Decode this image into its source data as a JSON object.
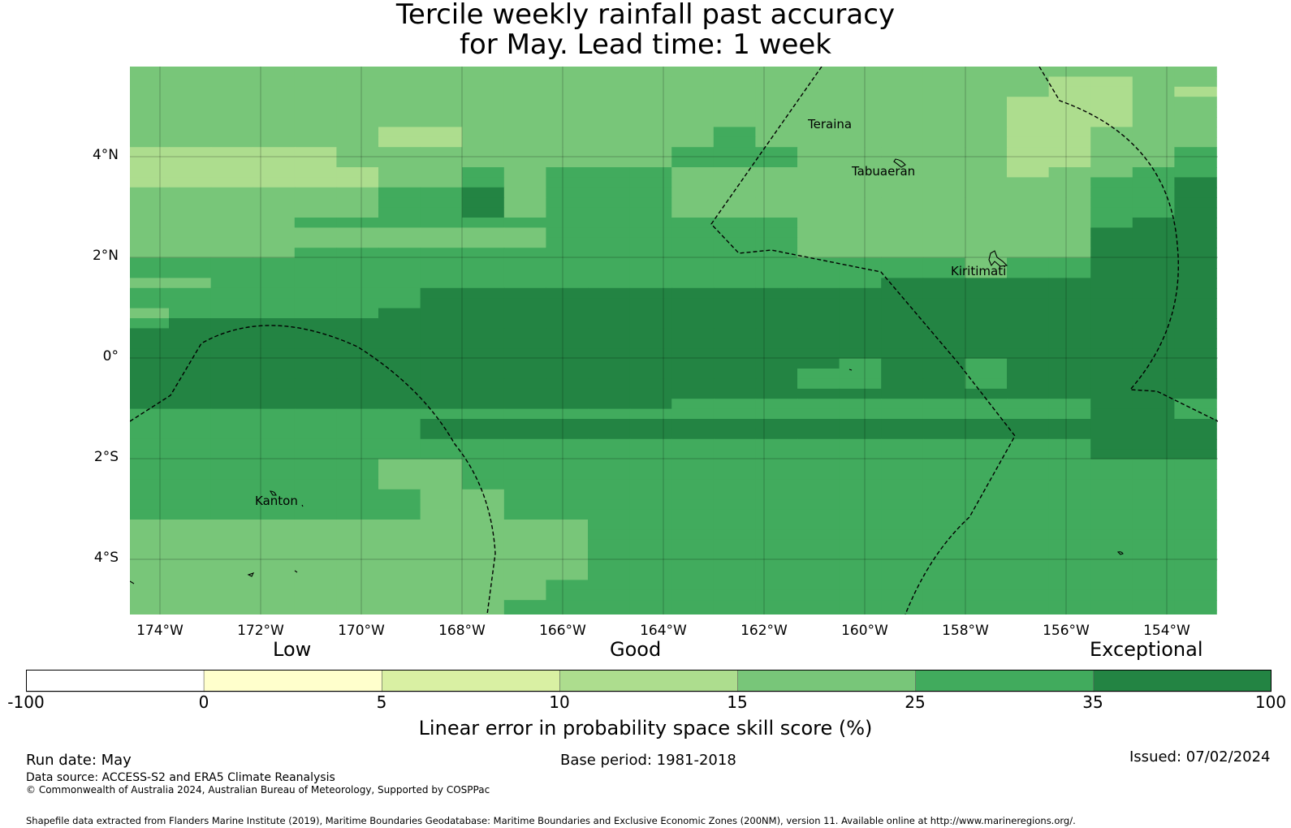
{
  "title": {
    "line1": "Tercile weekly rainfall past accuracy",
    "line2": "for May. Lead time: 1 week"
  },
  "map": {
    "lat_labels": [
      "4°N",
      "2°N",
      "0°",
      "2°S",
      "4°S"
    ],
    "lon_labels": [
      "174°W",
      "172°W",
      "170°W",
      "168°W",
      "166°W",
      "164°W",
      "162°W",
      "160°W",
      "158°W",
      "156°W",
      "154°W"
    ],
    "places": [
      "Teraina",
      "Tabuaeran",
      "Kiritimati",
      "Kanton"
    ],
    "colors": [
      "#ffffff",
      "#ffffcc",
      "#d9f0a3",
      "#addd8e",
      "#78c679",
      "#41ab5d",
      "#238443"
    ],
    "grid_code_legend": "1=#d9f0a3 2=#addd8e 3=#78c679 4=#41ab5d 5=#238443",
    "skill_grid": [
      "33333333333333333333333333",
      "33333333333333333333332233",
      "33333333333333333333332232",
      "33333333333333333333322233",
      "33333333333333333333322233",
      "33333333333333333333322233",
      "33333322333333433333322333",
      "33333322333333433333322333",
      "22222333333334443333322334",
      "22222333333334443333322334",
      "22222233434443333333323344",
      "22222233434443333333333445",
      "33333344534443333333333445",
      "33333344534443333333333445",
      "33333344534443333333333445",
      "33334444444444443333333455",
      "33333333334444443333333555",
      "33333333334444443333333555",
      "33334444444444443333333555",
      "44444444444444444444344555",
      "44444444444444444444344555",
      "33444444444444444455555555",
      "44444445555555555555555555",
      "44444445555555555555555555",
      "34444455555555555555555555",
      "45555555555555555555555555",
      "55555555555555555555555555",
      "55555555555555555555555555",
      "55555555555555555555555555",
      "55555555555555555455455555",
      "55555555555555554455455555",
      "55555555555555554455455555",
      "55555555555555555555555555",
      "55555555555554444444444554",
      "44444444444444444444444554",
      "44444445555555555555555555",
      "44444445555555555555555555",
      "44444444444444444444444555",
      "44444444444444444444444555",
      "44444433444444444444444444",
      "44444433444444444444444444",
      "44444433444444444444444444",
      "44444443344444444444444444",
      "44444443344444444444444444",
      "44444443344444444444444444",
      "33333333333444444444444444",
      "33333333333444444444444444",
      "33333333333444444444444444",
      "33333333333444444444444444",
      "33333333333444444444444444",
      "33333333333444444444444444",
      "33333333334444444444444444",
      "33333333334444444444444444",
      "33333333344444444444444444",
      "33333333344444444444444444"
    ]
  },
  "colorbar": {
    "categories": [
      "Low",
      "Good",
      "Exceptional"
    ],
    "tick_labels": [
      "-100",
      "0",
      "5",
      "10",
      "15",
      "25",
      "35",
      "100"
    ],
    "title": "Linear error in probability space skill score (%)"
  },
  "footer": {
    "run_date": "Run date: May",
    "base_period": "Base period: 1981-2018",
    "issued": "Issued: 07/02/2024",
    "data_source": "Data source: ACCESS-S2 and ERA5 Climate Reanalysis",
    "copyright": "© Commonwealth of Australia 2024, Australian Bureau of Meteorology, Supported by COSPPac",
    "shapefile": "Shapefile data extracted from Flanders Marine Institute (2019), Maritime Boundaries Geodatabase: Maritime Boundaries and Exclusive Economic Zones (200NM), version 11. Available online at http://www.marineregions.org/."
  }
}
